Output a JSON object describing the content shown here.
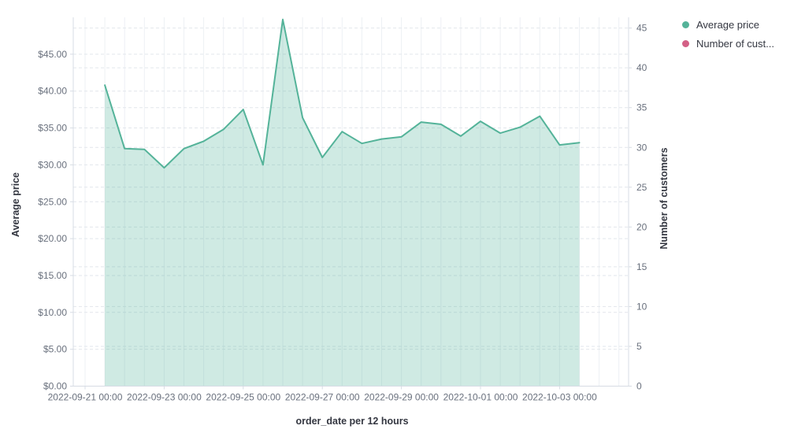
{
  "legend": {
    "items": [
      {
        "label": "Average price",
        "color": "#54b399"
      },
      {
        "label": "Number of cust...",
        "color": "#d36086"
      }
    ]
  },
  "chart_data": {
    "type": "area",
    "title": "",
    "legend_position": "right",
    "grid": {
      "vertical": "solid-12h",
      "horizontal": "dashed-both-axes"
    },
    "x_axis": {
      "title": "order_date per 12 hours",
      "tick_labels": [
        "2022-09-21 00:00",
        "2022-09-23 00:00",
        "2022-09-25 00:00",
        "2022-09-27 00:00",
        "2022-09-29 00:00",
        "2022-10-01 00:00",
        "2022-10-03 00:00"
      ]
    },
    "left_axis": {
      "title": "Average price",
      "min": 0,
      "max": 50,
      "tick_values": [
        0,
        5,
        10,
        15,
        20,
        25,
        30,
        35,
        40,
        45
      ],
      "tick_labels": [
        "$0.00",
        "$5.00",
        "$10.00",
        "$15.00",
        "$20.00",
        "$25.00",
        "$30.00",
        "$35.00",
        "$40.00",
        "$45.00"
      ]
    },
    "right_axis": {
      "title": "Number of customers",
      "min": 0,
      "max": 46.35,
      "tick_values": [
        0,
        5,
        10,
        15,
        20,
        25,
        30,
        35,
        40,
        45
      ],
      "tick_labels": [
        "0",
        "5",
        "10",
        "15",
        "20",
        "25",
        "30",
        "35",
        "40",
        "45"
      ]
    },
    "x": [
      "2022-09-21 12:00",
      "2022-09-22 00:00",
      "2022-09-22 12:00",
      "2022-09-23 00:00",
      "2022-09-23 12:00",
      "2022-09-24 00:00",
      "2022-09-24 12:00",
      "2022-09-25 00:00",
      "2022-09-25 12:00",
      "2022-09-26 00:00",
      "2022-09-26 12:00",
      "2022-09-27 00:00",
      "2022-09-27 12:00",
      "2022-09-28 00:00",
      "2022-09-28 12:00",
      "2022-09-29 00:00",
      "2022-09-29 12:00",
      "2022-09-30 00:00",
      "2022-09-30 12:00",
      "2022-10-01 00:00",
      "2022-10-01 12:00",
      "2022-10-02 00:00",
      "2022-10-02 12:00",
      "2022-10-03 00:00",
      "2022-10-03 12:00"
    ],
    "series": [
      {
        "name": "Average price",
        "axis": "left",
        "color": "#54b399",
        "fill_opacity": 0.28,
        "values": [
          40.8,
          32.2,
          32.1,
          29.6,
          32.2,
          33.2,
          34.8,
          37.5,
          30.0,
          49.7,
          36.4,
          31.0,
          34.5,
          32.9,
          33.5,
          33.8,
          35.8,
          35.5,
          33.9,
          35.9,
          34.3,
          35.1,
          36.6,
          32.7,
          33.0
        ]
      },
      {
        "name": "Number of customers",
        "axis": "right",
        "color": "#d36086",
        "values": []
      }
    ]
  }
}
